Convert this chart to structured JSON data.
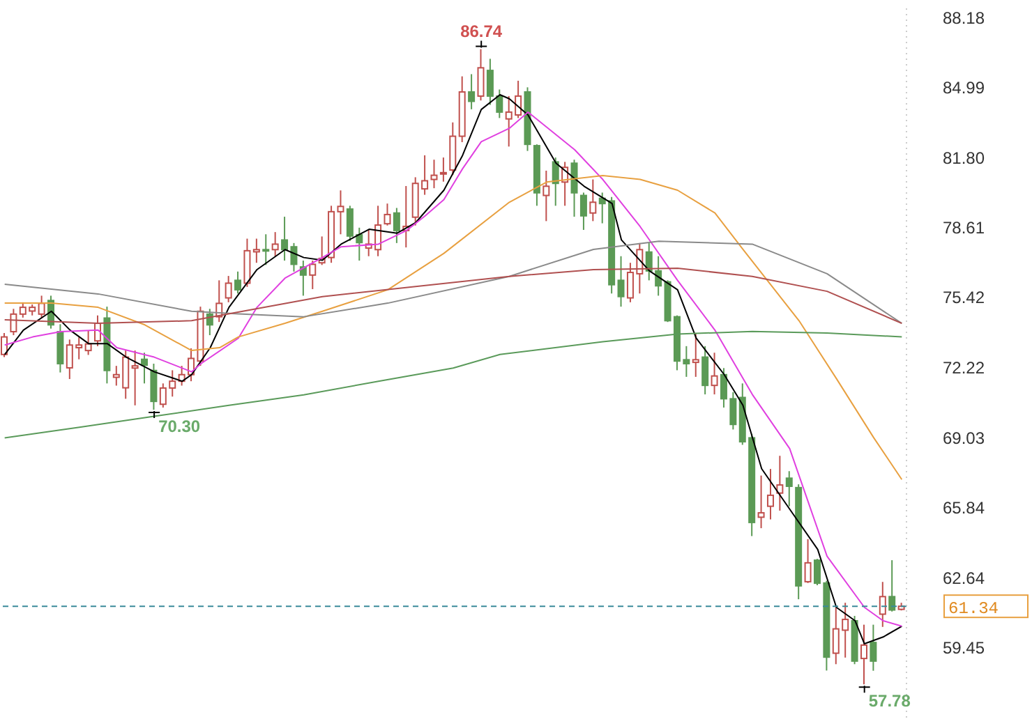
{
  "chart_data": {
    "type": "candlestick",
    "categories": [
      null,
      null,
      null,
      null,
      null,
      null,
      null,
      null,
      null,
      null,
      null,
      null,
      null,
      null,
      null,
      null,
      null,
      null,
      null,
      null,
      null,
      null,
      null,
      null,
      null,
      null,
      null,
      null,
      null,
      null,
      null,
      null,
      null,
      null,
      null,
      null,
      null,
      null,
      null,
      null,
      null,
      null,
      null,
      null,
      null,
      null,
      null,
      null,
      null,
      null,
      null,
      null,
      null,
      null,
      null,
      null,
      null,
      null,
      null,
      null,
      null,
      null,
      null,
      null,
      null,
      null,
      null,
      null,
      null,
      null,
      null,
      null,
      null,
      null,
      null,
      null,
      null,
      null,
      null,
      null,
      null,
      null,
      null,
      null,
      null,
      null,
      null,
      null,
      null,
      null,
      null,
      null,
      null,
      null,
      null,
      null,
      null
    ],
    "ohlc": [
      [
        72.82,
        73.8,
        72.7,
        73.62
      ],
      [
        73.86,
        74.9,
        73.7,
        74.66
      ],
      [
        74.66,
        75.2,
        74.5,
        74.97
      ],
      [
        74.8,
        75.1,
        74.6,
        74.97
      ],
      [
        74.66,
        75.5,
        74.5,
        75.15
      ],
      [
        75.28,
        75.5,
        74.0,
        74.17
      ],
      [
        73.86,
        74.2,
        72.0,
        72.4
      ],
      [
        72.21,
        73.5,
        71.7,
        73.25
      ],
      [
        73.13,
        73.6,
        72.6,
        73.25
      ],
      [
        73.0,
        73.9,
        72.8,
        73.3
      ],
      [
        73.44,
        74.6,
        73.2,
        74.24
      ],
      [
        74.48,
        75.0,
        71.5,
        72.09
      ],
      [
        71.78,
        72.3,
        71.4,
        71.9
      ],
      [
        71.3,
        73.0,
        70.8,
        72.7
      ],
      [
        72.2,
        73.0,
        70.5,
        72.3
      ],
      [
        72.6,
        72.9,
        71.5,
        72.33
      ],
      [
        72.09,
        72.4,
        70.3,
        70.68
      ],
      [
        70.55,
        71.5,
        70.4,
        71.29
      ],
      [
        71.29,
        72.1,
        70.9,
        71.6
      ],
      [
        71.6,
        72.3,
        71.4,
        71.9
      ],
      [
        71.9,
        73.1,
        71.6,
        72.64
      ],
      [
        72.52,
        75.0,
        72.3,
        74.79
      ],
      [
        74.66,
        74.9,
        73.7,
        74.17
      ],
      [
        74.54,
        76.2,
        74.3,
        75.15
      ],
      [
        75.4,
        76.4,
        75.2,
        76.07
      ],
      [
        76.2,
        76.6,
        75.6,
        75.77
      ],
      [
        76.07,
        78.1,
        75.9,
        77.55
      ],
      [
        77.5,
        78.1,
        77.0,
        77.6
      ],
      [
        77.6,
        78.3,
        76.9,
        77.55
      ],
      [
        77.6,
        78.4,
        77.3,
        77.85
      ],
      [
        78.04,
        79.1,
        77.1,
        77.6
      ],
      [
        77.73,
        77.9,
        76.6,
        76.93
      ],
      [
        76.81,
        77.1,
        75.5,
        76.44
      ],
      [
        76.44,
        77.1,
        75.8,
        76.93
      ],
      [
        77.0,
        78.2,
        76.9,
        77.2
      ],
      [
        77.24,
        79.6,
        77.0,
        79.33
      ],
      [
        79.33,
        80.3,
        78.3,
        79.57
      ],
      [
        79.45,
        79.6,
        78.0,
        78.22
      ],
      [
        78.28,
        78.6,
        77.1,
        77.92
      ],
      [
        77.67,
        78.5,
        77.3,
        77.85
      ],
      [
        77.6,
        79.6,
        77.3,
        78.72
      ],
      [
        78.78,
        79.7,
        78.7,
        79.2
      ],
      [
        79.27,
        79.5,
        77.9,
        78.47
      ],
      [
        78.47,
        80.5,
        77.7,
        78.66
      ],
      [
        79.08,
        80.9,
        78.7,
        80.62
      ],
      [
        80.37,
        81.9,
        80.1,
        80.74
      ],
      [
        80.8,
        81.7,
        80.4,
        80.99
      ],
      [
        81.05,
        81.8,
        80.7,
        81.11
      ],
      [
        81.23,
        83.4,
        81.0,
        82.77
      ],
      [
        82.77,
        85.5,
        82.5,
        84.79
      ],
      [
        84.79,
        85.6,
        84.0,
        84.36
      ],
      [
        84.6,
        86.74,
        84.4,
        85.89
      ],
      [
        85.77,
        86.3,
        84.2,
        84.6
      ],
      [
        84.6,
        84.9,
        83.6,
        83.87
      ],
      [
        83.56,
        84.6,
        82.3,
        83.87
      ],
      [
        83.74,
        85.3,
        83.6,
        84.6
      ],
      [
        84.79,
        85.0,
        82.1,
        82.4
      ],
      [
        82.34,
        82.4,
        79.6,
        80.19
      ],
      [
        80.07,
        81.2,
        78.9,
        80.49
      ],
      [
        81.6,
        81.8,
        79.6,
        80.62
      ],
      [
        80.68,
        81.6,
        79.6,
        81.35
      ],
      [
        81.54,
        81.7,
        79.1,
        80.19
      ],
      [
        80.07,
        80.2,
        78.5,
        79.14
      ],
      [
        79.27,
        80.8,
        78.9,
        79.76
      ],
      [
        79.94,
        80.2,
        78.8,
        79.7
      ],
      [
        79.82,
        80.0,
        75.6,
        76.0
      ],
      [
        76.2,
        77.3,
        75.0,
        75.46
      ],
      [
        75.4,
        77.0,
        75.2,
        76.56
      ],
      [
        76.5,
        77.9,
        75.6,
        77.6
      ],
      [
        77.49,
        77.9,
        76.2,
        76.63
      ],
      [
        76.63,
        77.3,
        75.5,
        75.95
      ],
      [
        76.13,
        76.2,
        74.3,
        74.36
      ],
      [
        74.54,
        74.6,
        72.1,
        72.52
      ],
      [
        72.58,
        73.2,
        71.8,
        72.4
      ],
      [
        72.46,
        73.8,
        71.8,
        72.58
      ],
      [
        72.7,
        73.2,
        71.0,
        71.41
      ],
      [
        71.41,
        72.9,
        71.0,
        71.84
      ],
      [
        71.9,
        72.2,
        70.4,
        70.8
      ],
      [
        70.8,
        71.1,
        69.4,
        69.63
      ],
      [
        70.86,
        71.5,
        68.7,
        68.84
      ],
      [
        69.02,
        69.2,
        64.54,
        65.16
      ],
      [
        65.4,
        67.3,
        64.9,
        65.6
      ],
      [
        65.9,
        67.6,
        65.3,
        66.4
      ],
      [
        66.5,
        68.2,
        65.7,
        66.87
      ],
      [
        67.18,
        67.5,
        65.9,
        66.81
      ],
      [
        66.75,
        66.9,
        61.66,
        62.27
      ],
      [
        62.46,
        64.4,
        62.4,
        63.32
      ],
      [
        63.44,
        63.5,
        62.3,
        62.39
      ],
      [
        62.4,
        62.5,
        58.41,
        59.02
      ],
      [
        59.2,
        61.3,
        58.7,
        60.31
      ],
      [
        60.25,
        61.5,
        59.0,
        60.74
      ],
      [
        60.68,
        60.9,
        58.7,
        58.84
      ],
      [
        58.96,
        60.5,
        57.78,
        59.57
      ],
      [
        59.69,
        60.5,
        58.4,
        58.84
      ],
      [
        60.98,
        62.45,
        60.4,
        61.78
      ],
      [
        61.78,
        63.44,
        61.1,
        61.17
      ],
      [
        61.2,
        61.5,
        61.15,
        61.34
      ]
    ],
    "series": [
      {
        "type": "line",
        "color": "#000000",
        "values": [
          72.82,
          null,
          73.93,
          null,
          null,
          74.79,
          null,
          73.93,
          null,
          73.31,
          null,
          73.31,
          null,
          72.7,
          null,
          null,
          72.03,
          null,
          null,
          71.6,
          71.9,
          null,
          73.13,
          null,
          74.97,
          null,
          null,
          76.69,
          null,
          null,
          77.6,
          null,
          77.24,
          null,
          77.12,
          null,
          77.85,
          null,
          null,
          78.53,
          null,
          null,
          78.35,
          null,
          78.84,
          null,
          null,
          80.31,
          null,
          81.9,
          null,
          83.99,
          null,
          84.66,
          84.48,
          null,
          83.74,
          null,
          null,
          81.54,
          null,
          null,
          80.49,
          null,
          null,
          79.7,
          78.04,
          null,
          null,
          76.63,
          null,
          null,
          75.77,
          null,
          73.56,
          null,
          null,
          71.9,
          null,
          70.5,
          null,
          67.61,
          null,
          null,
          65.77,
          null,
          null,
          63.93,
          null,
          61.29,
          null,
          60.68,
          59.63,
          null,
          59.94,
          null,
          60.43
        ]
      },
      {
        "type": "line",
        "color": "#e040e0",
        "values": [
          73.25,
          null,
          null,
          73.62,
          null,
          null,
          73.86,
          null,
          null,
          null,
          73.93,
          null,
          73.13,
          null,
          null,
          null,
          72.7,
          null,
          null,
          null,
          72.03,
          72.4,
          null,
          null,
          null,
          73.56,
          null,
          74.97,
          null,
          null,
          76.3,
          null,
          null,
          null,
          77.24,
          null,
          77.73,
          null,
          null,
          null,
          77.85,
          null,
          null,
          78.47,
          null,
          79.14,
          null,
          79.88,
          null,
          81.29,
          null,
          82.52,
          null,
          null,
          83.13,
          null,
          83.87,
          null,
          null,
          null,
          null,
          82.15,
          null,
          null,
          80.8,
          null,
          null,
          null,
          78.65,
          null,
          null,
          null,
          76.2,
          null,
          null,
          null,
          73.93,
          null,
          null,
          null,
          71.0,
          null,
          null,
          null,
          68.53,
          null,
          null,
          null,
          63.62,
          null,
          null,
          null,
          61.29,
          null,
          60.68,
          null,
          60.43
        ]
      },
      {
        "type": "line",
        "color": "#e8a040",
        "values": [
          75.16,
          null,
          null,
          null,
          null,
          75.16,
          null,
          null,
          null,
          null,
          74.97,
          null,
          null,
          null,
          null,
          74.17,
          null,
          null,
          null,
          null,
          73.0,
          null,
          null,
          73.13,
          null,
          73.62,
          null,
          null,
          null,
          null,
          74.24,
          null,
          null,
          null,
          74.79,
          null,
          null,
          null,
          null,
          null,
          null,
          75.77,
          null,
          null,
          null,
          null,
          null,
          77.43,
          null,
          null,
          null,
          null,
          null,
          null,
          79.76,
          null,
          null,
          null,
          80.68,
          null,
          null,
          null,
          null,
          null,
          80.98,
          null,
          null,
          null,
          80.8,
          null,
          null,
          null,
          80.31,
          null,
          null,
          null,
          79.27,
          null,
          null,
          77.61,
          null,
          null,
          null,
          null,
          null,
          74.36,
          null,
          null,
          null,
          71.72,
          null,
          null,
          null,
          69.02,
          null,
          null,
          67.12
        ]
      },
      {
        "type": "line",
        "color": "#8a8a8a",
        "values": [
          76.02,
          null,
          null,
          null,
          null,
          null,
          null,
          null,
          null,
          null,
          75.58,
          null,
          null,
          null,
          null,
          null,
          null,
          null,
          null,
          null,
          74.79,
          null,
          null,
          null,
          null,
          74.67,
          null,
          null,
          null,
          null,
          null,
          null,
          74.54,
          null,
          null,
          null,
          null,
          null,
          null,
          null,
          null,
          75.16,
          null,
          null,
          null,
          null,
          null,
          null,
          null,
          null,
          null,
          null,
          null,
          null,
          76.38,
          null,
          null,
          null,
          null,
          null,
          null,
          null,
          null,
          77.61,
          null,
          null,
          null,
          null,
          null,
          null,
          77.98,
          null,
          null,
          null,
          null,
          null,
          null,
          null,
          null,
          null,
          77.85,
          null,
          null,
          null,
          null,
          null,
          null,
          null,
          76.5,
          null,
          null,
          null,
          null,
          null,
          null,
          null,
          74.24
        ]
      },
      {
        "type": "line",
        "color": "#b05050",
        "values": [
          74.4,
          null,
          null,
          null,
          null,
          null,
          null,
          null,
          null,
          null,
          74.24,
          null,
          null,
          null,
          null,
          null,
          null,
          null,
          null,
          null,
          74.36,
          null,
          null,
          null,
          null,
          null,
          null,
          null,
          null,
          null,
          null,
          null,
          null,
          null,
          75.46,
          null,
          null,
          null,
          null,
          null,
          null,
          null,
          null,
          null,
          null,
          null,
          null,
          null,
          null,
          null,
          null,
          null,
          null,
          null,
          76.38,
          null,
          null,
          null,
          null,
          null,
          null,
          null,
          null,
          76.69,
          null,
          null,
          null,
          null,
          null,
          null,
          null,
          null,
          76.75,
          null,
          null,
          null,
          null,
          null,
          null,
          null,
          76.38,
          null,
          null,
          null,
          null,
          null,
          null,
          null,
          75.7,
          null,
          null,
          null,
          null,
          null,
          null,
          null,
          74.24
        ]
      },
      {
        "type": "line",
        "color": "#5a9a5a",
        "values": [
          69.02,
          null,
          null,
          null,
          null,
          null,
          null,
          null,
          69.5,
          null,
          null,
          null,
          null,
          null,
          null,
          null,
          70.0,
          null,
          null,
          null,
          null,
          null,
          null,
          null,
          70.5,
          null,
          null,
          null,
          null,
          null,
          null,
          null,
          70.98,
          null,
          null,
          null,
          null,
          null,
          null,
          null,
          71.6,
          null,
          null,
          null,
          null,
          null,
          null,
          null,
          72.2,
          null,
          null,
          null,
          null,
          72.82,
          null,
          null,
          null,
          null,
          null,
          null,
          null,
          null,
          null,
          null,
          73.4,
          null,
          null,
          null,
          null,
          null,
          null,
          null,
          73.75,
          null,
          null,
          null,
          null,
          null,
          null,
          null,
          73.87,
          null,
          null,
          null,
          null,
          null,
          null,
          null,
          73.8,
          null,
          null,
          null,
          null,
          null,
          null,
          null,
          73.62
        ]
      }
    ],
    "ylim": [
      56.2,
      88.6
    ],
    "yticks": [
      59.45,
      62.64,
      65.84,
      69.03,
      72.22,
      75.42,
      78.61,
      {
        "value": 81.8,
        "label": "81.80"
      },
      84.99,
      88.18
    ],
    "tick_labels": "y",
    "ref_lines": [
      {
        "axis": "y",
        "value": 61.34,
        "label": "61.34",
        "color": "#3a8a9a",
        "line_style": "dashed"
      }
    ],
    "annotations": [
      {
        "text": "86.74",
        "y": 86.74
      },
      {
        "text": "70.30",
        "y": 70.3
      },
      "57.78"
    ]
  }
}
